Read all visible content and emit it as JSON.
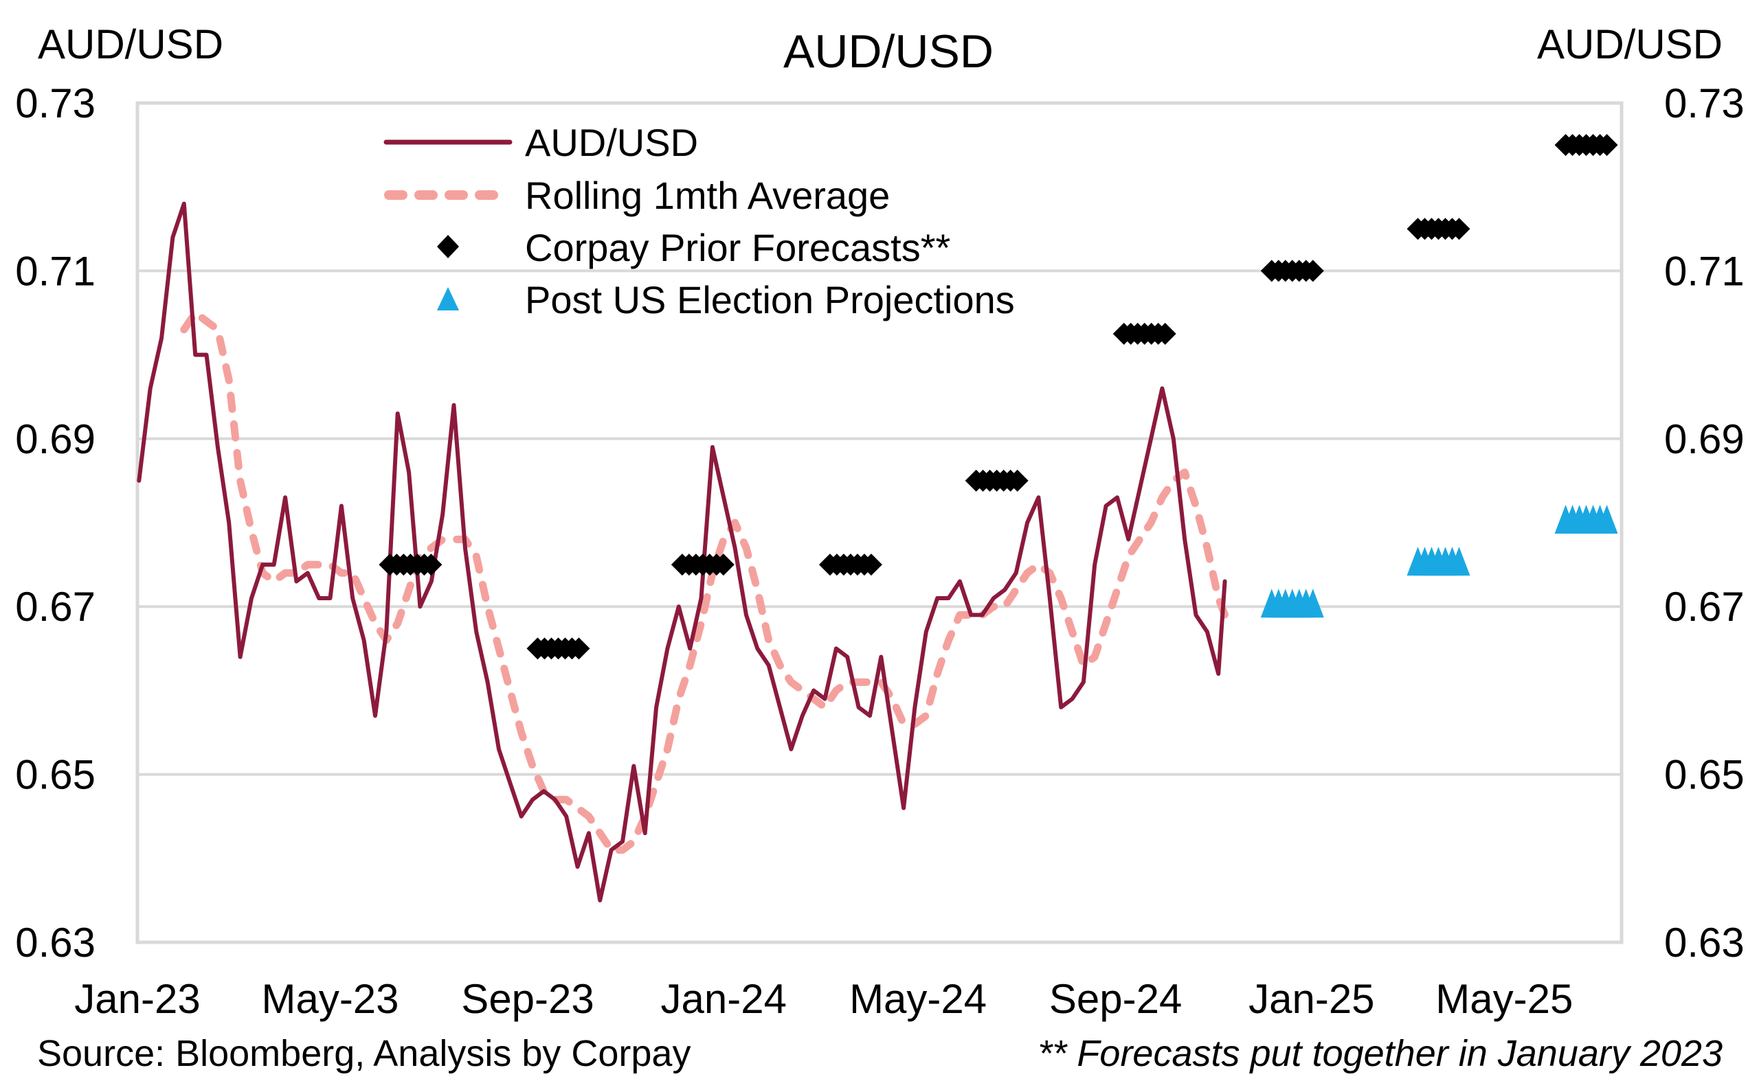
{
  "chart_data": {
    "type": "line",
    "title": "AUD/USD",
    "ylabel_left": "AUD/USD",
    "ylabel_right": "AUD/USD",
    "xlabel": "",
    "ylim": [
      0.63,
      0.73
    ],
    "yticks": [
      "0.73",
      "0.71",
      "0.69",
      "0.67",
      "0.65",
      "0.63"
    ],
    "xlim": [
      "2023-01-01",
      "2025-07-13"
    ],
    "xticks": [
      {
        "date": "2023-01-01",
        "label": "Jan-23"
      },
      {
        "date": "2023-05-01",
        "label": "May-23"
      },
      {
        "date": "2023-09-01",
        "label": "Sep-23"
      },
      {
        "date": "2024-01-01",
        "label": "Jan-24"
      },
      {
        "date": "2024-05-01",
        "label": "May-24"
      },
      {
        "date": "2024-09-01",
        "label": "Sep-24"
      },
      {
        "date": "2025-01-01",
        "label": "Jan-25"
      },
      {
        "date": "2025-05-01",
        "label": "May-25"
      }
    ],
    "grid": true,
    "legend_placement": "top-left",
    "x": [
      "2023-01-02",
      "2023-01-09",
      "2023-01-16",
      "2023-01-23",
      "2023-01-30",
      "2023-02-06",
      "2023-02-13",
      "2023-02-20",
      "2023-02-27",
      "2023-03-06",
      "2023-03-13",
      "2023-03-20",
      "2023-03-27",
      "2023-04-03",
      "2023-04-10",
      "2023-04-17",
      "2023-04-24",
      "2023-05-01",
      "2023-05-08",
      "2023-05-15",
      "2023-05-22",
      "2023-05-29",
      "2023-06-05",
      "2023-06-12",
      "2023-06-19",
      "2023-06-26",
      "2023-07-03",
      "2023-07-10",
      "2023-07-17",
      "2023-07-24",
      "2023-07-31",
      "2023-08-07",
      "2023-08-14",
      "2023-08-21",
      "2023-08-28",
      "2023-09-04",
      "2023-09-11",
      "2023-09-18",
      "2023-09-25",
      "2023-10-02",
      "2023-10-09",
      "2023-10-16",
      "2023-10-23",
      "2023-10-30",
      "2023-11-06",
      "2023-11-13",
      "2023-11-20",
      "2023-11-27",
      "2023-12-04",
      "2023-12-11",
      "2023-12-18",
      "2023-12-25",
      "2024-01-01",
      "2024-01-08",
      "2024-01-15",
      "2024-01-22",
      "2024-01-29",
      "2024-02-05",
      "2024-02-12",
      "2024-02-19",
      "2024-02-26",
      "2024-03-04",
      "2024-03-11",
      "2024-03-18",
      "2024-03-25",
      "2024-04-01",
      "2024-04-08",
      "2024-04-15",
      "2024-04-22",
      "2024-04-29",
      "2024-05-06",
      "2024-05-13",
      "2024-05-20",
      "2024-05-27",
      "2024-06-03",
      "2024-06-10",
      "2024-06-17",
      "2024-06-24",
      "2024-07-01",
      "2024-07-08",
      "2024-07-15",
      "2024-07-22",
      "2024-07-29",
      "2024-08-05",
      "2024-08-12",
      "2024-08-19",
      "2024-08-26",
      "2024-09-02",
      "2024-09-09",
      "2024-09-16",
      "2024-09-23",
      "2024-09-30",
      "2024-10-07",
      "2024-10-14",
      "2024-10-21",
      "2024-10-28",
      "2024-11-04",
      "2024-11-08"
    ],
    "series": [
      {
        "name": "AUD/USD",
        "color": "#8C1A3C",
        "style": "solid",
        "values": [
          0.685,
          0.696,
          0.702,
          0.714,
          0.718,
          0.7,
          0.7,
          0.689,
          0.68,
          0.664,
          0.671,
          0.675,
          0.675,
          0.683,
          0.673,
          0.674,
          0.671,
          0.671,
          0.682,
          0.671,
          0.666,
          0.657,
          0.667,
          0.693,
          0.686,
          0.67,
          0.673,
          0.681,
          0.694,
          0.677,
          0.667,
          0.661,
          0.653,
          0.649,
          0.645,
          0.647,
          0.648,
          0.647,
          0.645,
          0.639,
          0.643,
          0.635,
          0.641,
          0.642,
          0.651,
          0.643,
          0.658,
          0.665,
          0.67,
          0.665,
          0.671,
          0.689,
          0.683,
          0.677,
          0.669,
          0.665,
          0.663,
          0.658,
          0.653,
          0.657,
          0.66,
          0.659,
          0.665,
          0.664,
          0.658,
          0.657,
          0.664,
          0.655,
          0.646,
          0.658,
          0.667,
          0.671,
          0.671,
          0.673,
          0.669,
          0.669,
          0.671,
          0.672,
          0.674,
          0.68,
          0.683,
          0.671,
          0.658,
          0.659,
          0.661,
          0.675,
          0.682,
          0.683,
          0.678,
          0.684,
          0.69,
          0.696,
          0.69,
          0.678,
          0.669,
          0.667,
          0.662,
          0.673
        ]
      },
      {
        "name": "Rolling 1mth Average",
        "color": "#F4A19D",
        "style": "dashed",
        "values": [
          null,
          null,
          null,
          null,
          0.703,
          0.705,
          0.704,
          0.703,
          0.697,
          0.685,
          0.679,
          0.674,
          0.673,
          0.674,
          0.674,
          0.675,
          0.675,
          0.675,
          0.674,
          0.674,
          0.671,
          0.668,
          0.666,
          0.668,
          0.672,
          0.676,
          0.677,
          0.678,
          0.678,
          0.678,
          0.676,
          0.67,
          0.665,
          0.66,
          0.655,
          0.651,
          0.648,
          0.647,
          0.647,
          0.646,
          0.645,
          0.643,
          0.641,
          0.641,
          0.642,
          0.645,
          0.649,
          0.653,
          0.659,
          0.663,
          0.668,
          0.674,
          0.678,
          0.68,
          0.677,
          0.672,
          0.666,
          0.663,
          0.661,
          0.66,
          0.659,
          0.658,
          0.66,
          0.661,
          0.661,
          0.661,
          0.661,
          0.659,
          0.656,
          0.656,
          0.657,
          0.662,
          0.666,
          0.669,
          0.669,
          0.669,
          0.67,
          0.67,
          0.672,
          0.674,
          0.675,
          0.674,
          0.671,
          0.667,
          0.663,
          0.664,
          0.668,
          0.672,
          0.676,
          0.678,
          0.68,
          0.683,
          0.685,
          0.686,
          0.682,
          0.677,
          0.671,
          0.669
        ]
      }
    ],
    "markers": [
      {
        "name": "Corpay Prior Forecasts**",
        "shape": "diamond",
        "color": "#000000",
        "points": [
          {
            "date": "2023-06-20",
            "value": 0.675
          },
          {
            "date": "2023-09-20",
            "value": 0.665
          },
          {
            "date": "2023-12-19",
            "value": 0.675
          },
          {
            "date": "2024-03-20",
            "value": 0.675
          },
          {
            "date": "2024-06-19",
            "value": 0.685
          },
          {
            "date": "2024-09-19",
            "value": 0.7025
          },
          {
            "date": "2024-12-20",
            "value": 0.71
          },
          {
            "date": "2025-03-21",
            "value": 0.715
          },
          {
            "date": "2025-06-21",
            "value": 0.725
          }
        ]
      },
      {
        "name": "Post US Election Projections",
        "shape": "triangle",
        "color": "#1AA8E2",
        "points": [
          {
            "date": "2024-12-20",
            "value": 0.67
          },
          {
            "date": "2025-03-21",
            "value": 0.675
          },
          {
            "date": "2025-06-21",
            "value": 0.68
          }
        ]
      }
    ],
    "title_color": "#9E1B1B",
    "source": "Source: Bloomberg, Analysis by Corpay",
    "footnote": "** Forecasts put together in January 2023"
  }
}
